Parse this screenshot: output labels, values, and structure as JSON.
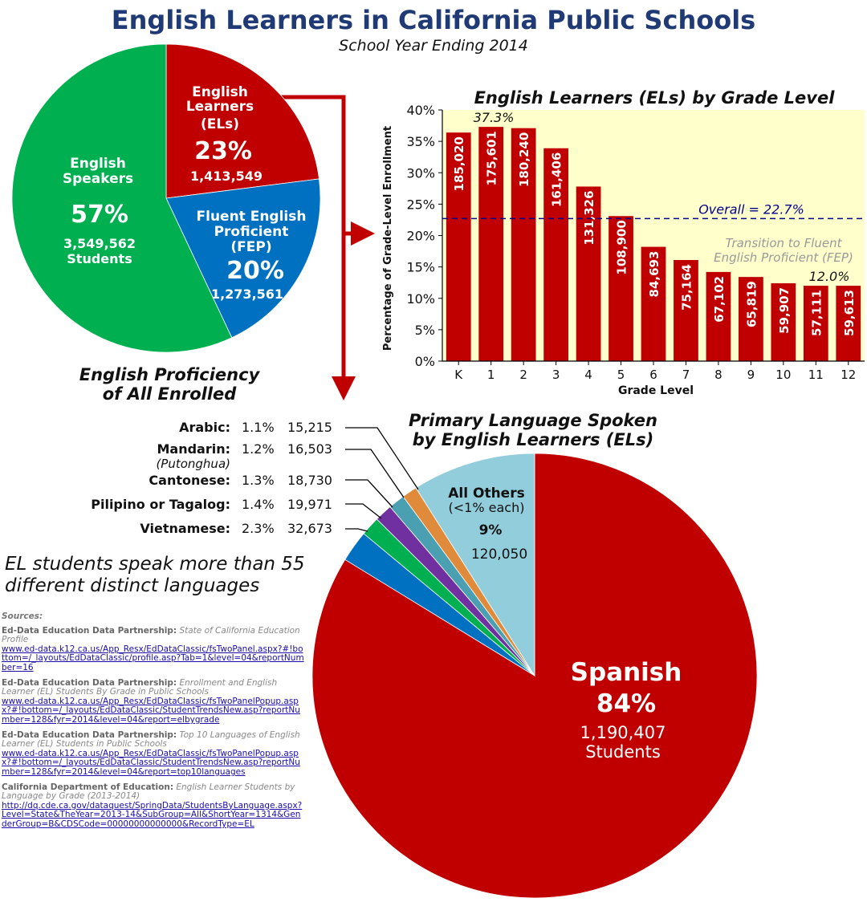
{
  "header": {
    "title": "English Learners in California Public Schools",
    "subtitle": "School Year Ending 2014"
  },
  "chart_data": [
    {
      "type": "pie",
      "title": "English Proficiency of All Enrolled",
      "slices": [
        {
          "label": "English Learners (ELs)",
          "percent": 23,
          "percent_text": "23%",
          "count": "1,413,549",
          "color": "#c00000"
        },
        {
          "label": "Fluent English Proficient (FEP)",
          "percent": 20,
          "percent_text": "20%",
          "count": "1,273,561",
          "color": "#0070c0"
        },
        {
          "label": "English Speakers",
          "percent": 57,
          "percent_text": "57%",
          "count": "3,549,562",
          "count_suffix": "Students",
          "color": "#00b050"
        }
      ]
    },
    {
      "type": "bar",
      "title": "English Learners (ELs) by Grade Level",
      "xlabel": "Grade Level",
      "ylabel": "Percentage of Grade-Level Enrollment",
      "ylim": [
        0,
        40
      ],
      "ytick_labels": [
        "0%",
        "5%",
        "10%",
        "15%",
        "20%",
        "25%",
        "30%",
        "35%",
        "40%"
      ],
      "grid": false,
      "categories": [
        "K",
        "1",
        "2",
        "3",
        "4",
        "5",
        "6",
        "7",
        "8",
        "9",
        "10",
        "11",
        "12"
      ],
      "values": [
        36.4,
        37.3,
        37.1,
        33.9,
        27.8,
        23.1,
        18.2,
        16.1,
        14.2,
        13.4,
        12.4,
        12.0,
        12.0
      ],
      "counts": [
        "185,020",
        "175,601",
        "180,240",
        "161,406",
        "131,326",
        "108,900",
        "84,693",
        "75,164",
        "67,102",
        "65,819",
        "59,907",
        "57,111",
        "59,613"
      ],
      "color": "#c00000",
      "background": "#ffffcc",
      "reference_line": {
        "value": 22.7,
        "label": "Overall = 22.7%",
        "color": "#00008b"
      },
      "annotations": {
        "peak_label": "37.3%",
        "end_label": "12.0%",
        "transition_text": [
          "Transition to Fluent",
          "English Proficient (FEP)"
        ]
      }
    },
    {
      "type": "pie",
      "title": "Primary Language Spoken by English Learners (ELs)",
      "slices": [
        {
          "label": "Spanish",
          "percent": 84,
          "percent_text": "84%",
          "count": "1,190,407",
          "count_suffix": "Students",
          "color": "#c00000"
        },
        {
          "label": "Vietnamese:",
          "percent": 2.3,
          "percent_text": "2.3%",
          "count": "32,673",
          "color": "#0070c0"
        },
        {
          "label": "Pilipino or Tagalog:",
          "percent": 1.4,
          "percent_text": "1.4%",
          "count": "19,971",
          "color": "#00b050"
        },
        {
          "label": "Cantonese:",
          "percent": 1.3,
          "percent_text": "1.3%",
          "count": "18,730",
          "color": "#7030a0"
        },
        {
          "label": "Mandarin:",
          "sublabel": "(Putonghua)",
          "percent": 1.2,
          "percent_text": "1.2%",
          "count": "16,503",
          "color": "#4aa0b0"
        },
        {
          "label": "Arabic:",
          "percent": 1.1,
          "percent_text": "1.1%",
          "count": "15,215",
          "color": "#e08a3c"
        },
        {
          "label": "All Others",
          "sublabel": "(<1% each)",
          "percent": 9,
          "percent_text": "9%",
          "count": "120,050",
          "color": "#92cddc"
        }
      ]
    }
  ],
  "note": [
    "EL students speak more than 55",
    "different distinct languages"
  ],
  "sources": {
    "heading": "Sources:",
    "items": [
      {
        "org": "Ed-Data Education Data Partnership:",
        "desc": "State of California Education Profile",
        "link": "www.ed-data.k12.ca.us/App_Resx/EdDataClassic/fsTwoPanel.aspx?#!bottom=/_layouts/EdDataClassic/profile.asp?Tab=1&level=04&reportNumber=16"
      },
      {
        "org": "Ed-Data Education Data Partnership:",
        "desc": "Enrollment and English Learner (EL) Students By Grade in Public Schools",
        "link": "www.ed-data.k12.ca.us/App_Resx/EdDataClassic/fsTwoPanelPopup.aspx?#!bottom=/_layouts/EdDataClassic/StudentTrendsNew.asp?reportNumber=128&fyr=2014&level=04&report=elbygrade"
      },
      {
        "org": "Ed-Data Education Data Partnership:",
        "desc": "Top 10 Languages of English Learner (EL) Students in Public Schools",
        "link": "www.ed-data.k12.ca.us/App_Resx/EdDataClassic/fsTwoPanelPopup.aspx?#!bottom=/_layouts/EdDataClassic/StudentTrendsNew.asp?reportNumber=128&fyr=2014&level=04&report=top10languages"
      },
      {
        "org": "California Department of Education:",
        "desc": "English Learner Students by Language by Grade (2013-2014)",
        "link": "http://dq.cde.ca.gov/dataquest/SpringData/StudentsByLanguage.aspx?Level=State&TheYear=2013-14&SubGroup=All&ShortYear=1314&GenderGroup=B&CDSCode=00000000000000&RecordType=EL"
      }
    ]
  }
}
